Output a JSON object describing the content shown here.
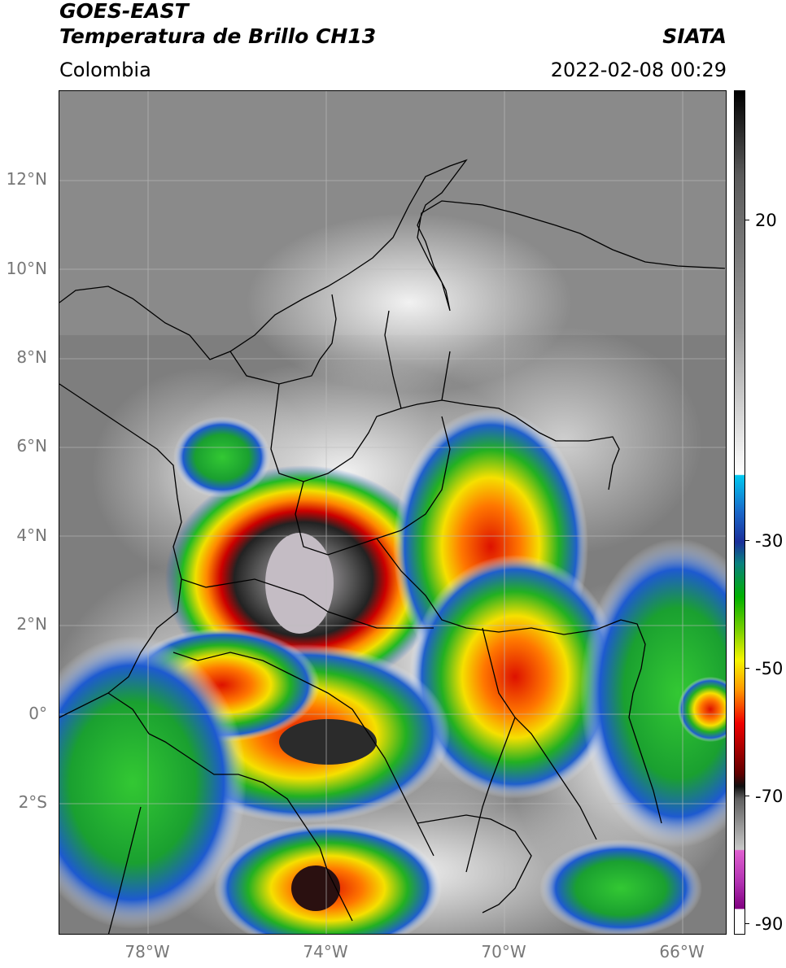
{
  "header": {
    "title_line1": "GOES-EAST",
    "title_line2": "Temperatura de Brillo CH13",
    "agency": "SIATA",
    "region": "Colombia",
    "datetime": "2022-02-08 00:29"
  },
  "map": {
    "lat_labels": [
      "12°N",
      "10°N",
      "8°N",
      "6°N",
      "4°N",
      "2°N",
      "0°",
      "2°S"
    ],
    "lon_labels": [
      "78°W",
      "74°W",
      "70°W",
      "66°W"
    ],
    "colors": {
      "land_cloud_free": "#808080",
      "cold_cloud_core": "#2a2a2a",
      "borders": "#000000",
      "grid": "#bdbdbd"
    }
  },
  "colorbar": {
    "tick_labels": [
      "20",
      "-30",
      "-50",
      "-70",
      "-90"
    ],
    "stops": [
      "#000000",
      "#808080",
      "#ffffff",
      "#00c8f0",
      "#1f2f9f",
      "#00b000",
      "#f5f500",
      "#f00000",
      "#303030",
      "#c8c8c8",
      "#e040e0",
      "#800080",
      "#ffffff"
    ]
  }
}
